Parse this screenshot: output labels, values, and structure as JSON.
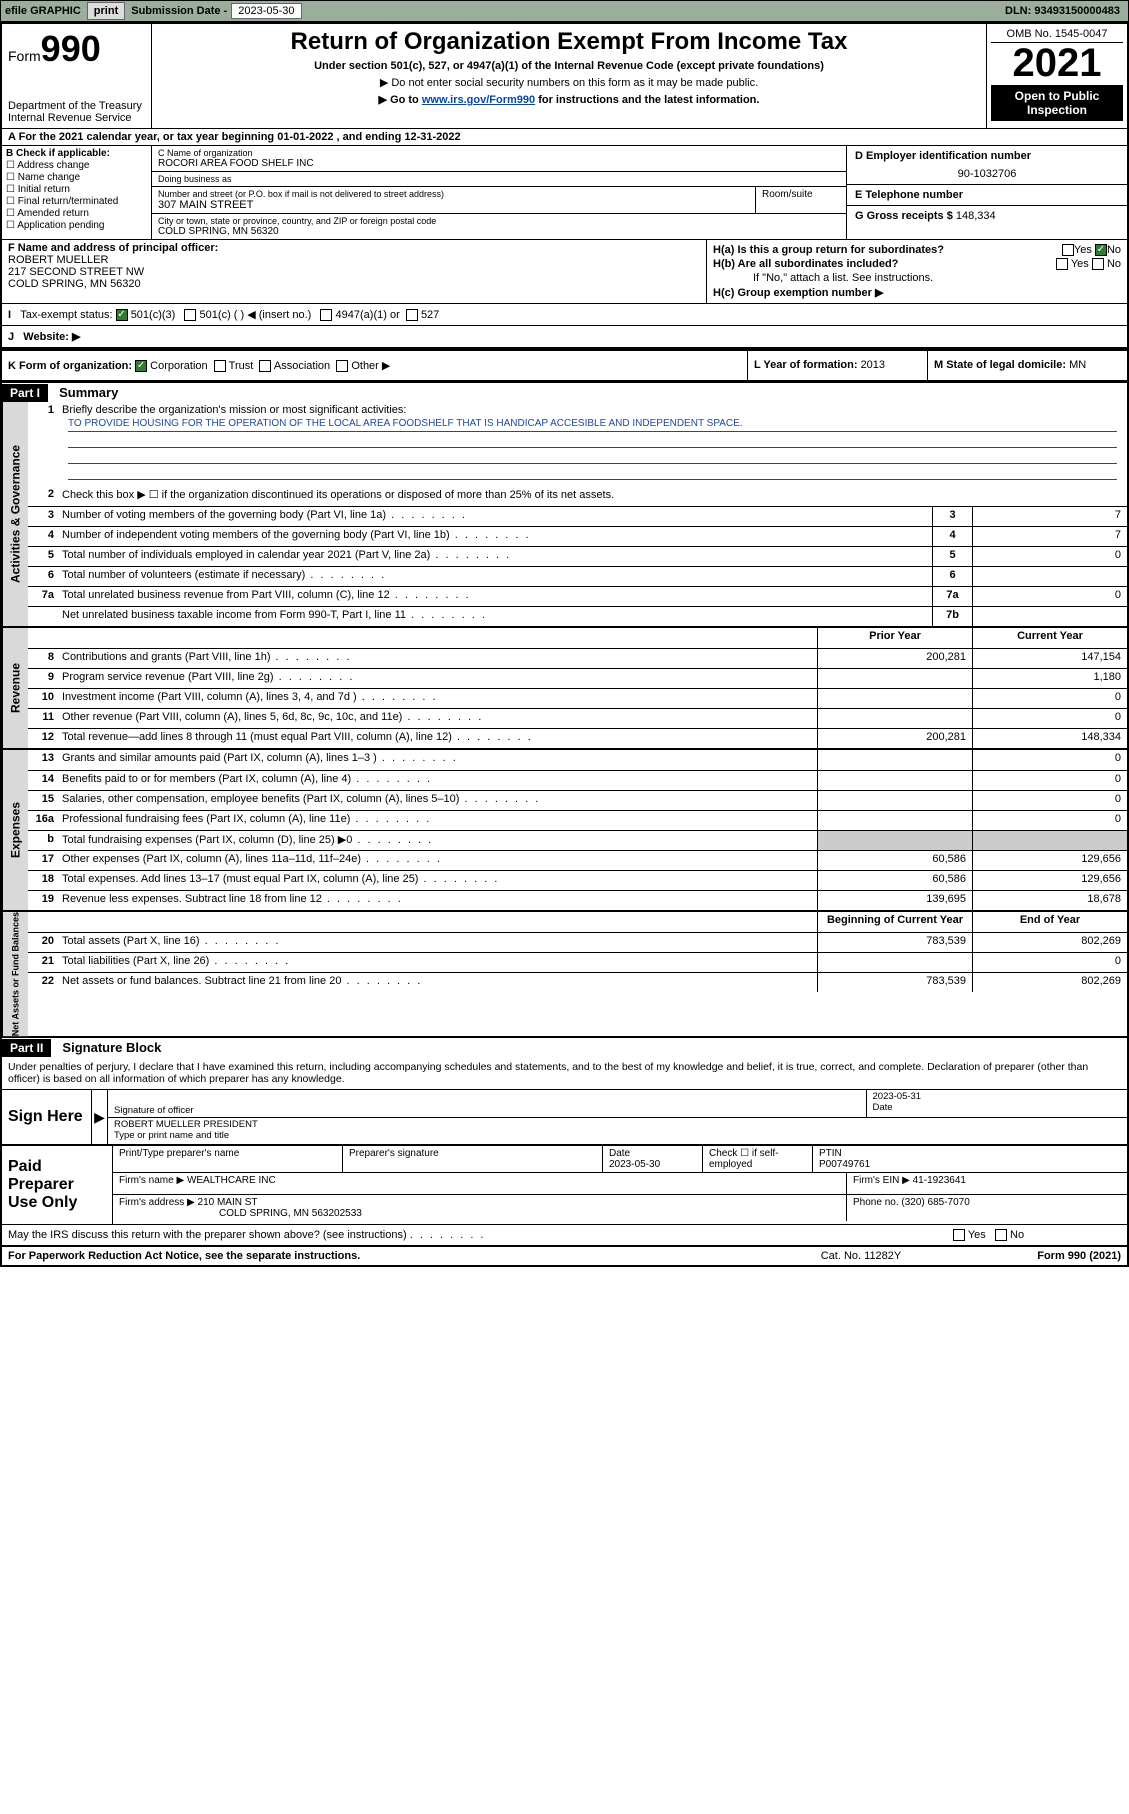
{
  "topbar": {
    "efile_label": "efile GRAPHIC",
    "print_btn": "print",
    "sub_date_label": "Submission Date - ",
    "sub_date": "2023-05-30",
    "dln_label": "DLN: ",
    "dln": "93493150000483"
  },
  "header": {
    "form_prefix": "Form",
    "form_num": "990",
    "dept": "Department of the Treasury",
    "irs": "Internal Revenue Service",
    "title": "Return of Organization Exempt From Income Tax",
    "subtitle": "Under section 501(c), 527, or 4947(a)(1) of the Internal Revenue Code (except private foundations)",
    "note1": "▶ Do not enter social security numbers on this form as it may be made public.",
    "note2_pre": "▶ Go to ",
    "note2_link": "www.irs.gov/Form990",
    "note2_post": " for instructions and the latest information.",
    "omb": "OMB No. 1545-0047",
    "year": "2021",
    "open_pub": "Open to Public Inspection"
  },
  "rowA": "For the 2021 calendar year, or tax year beginning 01-01-2022   , and ending 12-31-2022",
  "B": {
    "label": "B Check if applicable:",
    "items": [
      "Address change",
      "Name change",
      "Initial return",
      "Final return/terminated",
      "Amended return",
      "Application pending"
    ]
  },
  "C": {
    "name_label": "C Name of organization",
    "name": "ROCORI AREA FOOD SHELF INC",
    "dba_label": "Doing business as",
    "dba": "",
    "addr_label": "Number and street (or P.O. box if mail is not delivered to street address)",
    "room_label": "Room/suite",
    "addr": "307 MAIN STREET",
    "city_label": "City or town, state or province, country, and ZIP or foreign postal code",
    "city": "COLD SPRING, MN  56320"
  },
  "D": {
    "label": "D Employer identification number",
    "val": "90-1032706"
  },
  "E": {
    "label": "E Telephone number",
    "val": ""
  },
  "G": {
    "label": "G Gross receipts $",
    "val": "148,334"
  },
  "F": {
    "label": "F  Name and address of principal officer:",
    "name": "ROBERT MUELLER",
    "addr1": "217 SECOND STREET NW",
    "addr2": "COLD SPRING, MN  56320"
  },
  "H": {
    "a": "H(a)  Is this a group return for subordinates?",
    "a_yes": "Yes",
    "a_no": "No",
    "b": "H(b)  Are all subordinates included?",
    "b_yes": "Yes",
    "b_no": "No",
    "b_note": "If \"No,\" attach a list. See instructions.",
    "c": "H(c)  Group exemption number ▶"
  },
  "I": {
    "label": "Tax-exempt status:",
    "opt1": "501(c)(3)",
    "opt2": "501(c) (   ) ◀ (insert no.)",
    "opt3": "4947(a)(1) or",
    "opt4": "527"
  },
  "J": {
    "label": "Website: ▶",
    "val": ""
  },
  "K": {
    "label": "K Form of organization:",
    "opts": [
      "Corporation",
      "Trust",
      "Association",
      "Other ▶"
    ]
  },
  "L": {
    "label": "L Year of formation: ",
    "val": "2013"
  },
  "M": {
    "label": "M State of legal domicile: ",
    "val": "MN"
  },
  "partI": {
    "hdr": "Part I",
    "title": "Summary"
  },
  "summary": {
    "q1_label": "Briefly describe the organization's mission or most significant activities:",
    "q1_text": "TO PROVIDE HOUSING FOR THE OPERATION OF THE LOCAL AREA FOODSHELF THAT IS HANDICAP ACCESIBLE AND INDEPENDENT SPACE.",
    "q2": "Check this box ▶ ☐  if the organization discontinued its operations or disposed of more than 25% of its net assets.",
    "rows_gov": [
      {
        "n": "3",
        "d": "Number of voting members of the governing body (Part VI, line 1a)",
        "box": "3",
        "v": "7"
      },
      {
        "n": "4",
        "d": "Number of independent voting members of the governing body (Part VI, line 1b)",
        "box": "4",
        "v": "7"
      },
      {
        "n": "5",
        "d": "Total number of individuals employed in calendar year 2021 (Part V, line 2a)",
        "box": "5",
        "v": "0"
      },
      {
        "n": "6",
        "d": "Total number of volunteers (estimate if necessary)",
        "box": "6",
        "v": ""
      },
      {
        "n": "7a",
        "d": "Total unrelated business revenue from Part VIII, column (C), line 12",
        "box": "7a",
        "v": "0"
      },
      {
        "n": "",
        "d": "Net unrelated business taxable income from Form 990-T, Part I, line 11",
        "box": "7b",
        "v": ""
      }
    ],
    "col_hdr_prior": "Prior Year",
    "col_hdr_curr": "Current Year",
    "rev": [
      {
        "n": "8",
        "d": "Contributions and grants (Part VIII, line 1h)",
        "p": "200,281",
        "c": "147,154"
      },
      {
        "n": "9",
        "d": "Program service revenue (Part VIII, line 2g)",
        "p": "",
        "c": "1,180"
      },
      {
        "n": "10",
        "d": "Investment income (Part VIII, column (A), lines 3, 4, and 7d )",
        "p": "",
        "c": "0"
      },
      {
        "n": "11",
        "d": "Other revenue (Part VIII, column (A), lines 5, 6d, 8c, 9c, 10c, and 11e)",
        "p": "",
        "c": "0"
      },
      {
        "n": "12",
        "d": "Total revenue—add lines 8 through 11 (must equal Part VIII, column (A), line 12)",
        "p": "200,281",
        "c": "148,334"
      }
    ],
    "exp": [
      {
        "n": "13",
        "d": "Grants and similar amounts paid (Part IX, column (A), lines 1–3 )",
        "p": "",
        "c": "0"
      },
      {
        "n": "14",
        "d": "Benefits paid to or for members (Part IX, column (A), line 4)",
        "p": "",
        "c": "0"
      },
      {
        "n": "15",
        "d": "Salaries, other compensation, employee benefits (Part IX, column (A), lines 5–10)",
        "p": "",
        "c": "0"
      },
      {
        "n": "16a",
        "d": "Professional fundraising fees (Part IX, column (A), line 11e)",
        "p": "",
        "c": "0"
      },
      {
        "n": "b",
        "d": "Total fundraising expenses (Part IX, column (D), line 25) ▶0",
        "p": "shade",
        "c": "shade"
      },
      {
        "n": "17",
        "d": "Other expenses (Part IX, column (A), lines 11a–11d, 11f–24e)",
        "p": "60,586",
        "c": "129,656"
      },
      {
        "n": "18",
        "d": "Total expenses. Add lines 13–17 (must equal Part IX, column (A), line 25)",
        "p": "60,586",
        "c": "129,656"
      },
      {
        "n": "19",
        "d": "Revenue less expenses. Subtract line 18 from line 12",
        "p": "139,695",
        "c": "18,678"
      }
    ],
    "na_hdr_begin": "Beginning of Current Year",
    "na_hdr_end": "End of Year",
    "na": [
      {
        "n": "20",
        "d": "Total assets (Part X, line 16)",
        "p": "783,539",
        "c": "802,269"
      },
      {
        "n": "21",
        "d": "Total liabilities (Part X, line 26)",
        "p": "",
        "c": "0"
      },
      {
        "n": "22",
        "d": "Net assets or fund balances. Subtract line 21 from line 20",
        "p": "783,539",
        "c": "802,269"
      }
    ]
  },
  "sidebars": {
    "gov": "Activities & Governance",
    "rev": "Revenue",
    "exp": "Expenses",
    "na": "Net Assets or Fund Balances"
  },
  "partII": {
    "hdr": "Part II",
    "title": "Signature Block"
  },
  "sig": {
    "perjury": "Under penalties of perjury, I declare that I have examined this return, including accompanying schedules and statements, and to the best of my knowledge and belief, it is true, correct, and complete. Declaration of preparer (other than officer) is based on all information of which preparer has any knowledge.",
    "sign_here": "Sign Here",
    "sig_officer_label": "Signature of officer",
    "date_label": "Date",
    "date_val": "2023-05-31",
    "officer_name": "ROBERT MUELLER  PRESIDENT",
    "officer_name_label": "Type or print name and title",
    "paid_label": "Paid Preparer Use Only",
    "prep_name_label": "Print/Type preparer's name",
    "prep_sig_label": "Preparer's signature",
    "prep_date_label": "Date",
    "prep_date": "2023-05-30",
    "check_if_label": "Check ☐ if self-employed",
    "ptin_label": "PTIN",
    "ptin": "P00749761",
    "firm_name_label": "Firm's name    ▶",
    "firm_name": "WEALTHCARE INC",
    "firm_ein_label": "Firm's EIN ▶",
    "firm_ein": "41-1923641",
    "firm_addr_label": "Firm's address ▶",
    "firm_addr1": "210 MAIN ST",
    "firm_addr2": "COLD SPRING, MN  563202533",
    "phone_label": "Phone no.",
    "phone": "(320) 685-7070",
    "discuss": "May the IRS discuss this return with the preparer shown above? (see instructions)",
    "discuss_yes": "Yes",
    "discuss_no": "No"
  },
  "footer": {
    "left": "For Paperwork Reduction Act Notice, see the separate instructions.",
    "mid": "Cat. No. 11282Y",
    "right": "Form 990 (2021)"
  },
  "colors": {
    "topbar_bg": "#9bad9b",
    "link": "#0645ad",
    "checked": "#2e7d32",
    "shade": "#cccccc",
    "sidebar_bg": "#d9d9d9"
  }
}
